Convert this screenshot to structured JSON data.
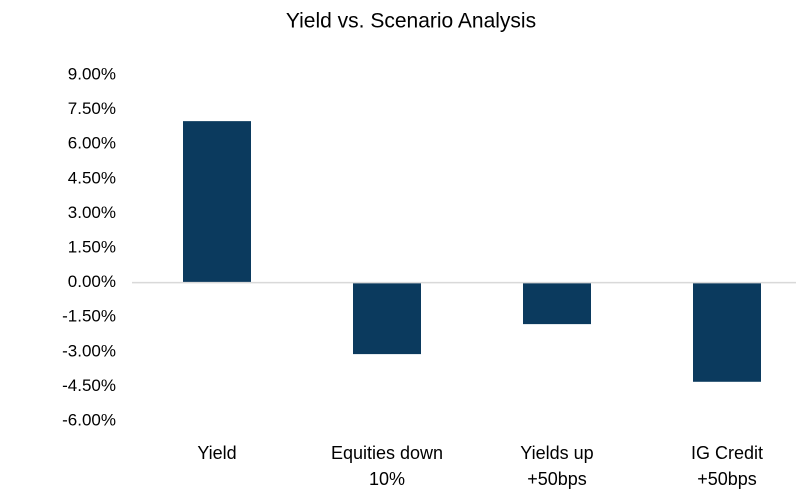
{
  "chart_data": {
    "type": "bar",
    "title": "Yield vs. Scenario Analysis",
    "categories": [
      "Yield",
      "Equities down 10%",
      "Yields up +50bps",
      "IG Credit +50bps"
    ],
    "values": [
      7.0,
      -3.1,
      -1.8,
      -4.3
    ],
    "color": "#0b3a5e",
    "ylim": [
      -6,
      9
    ],
    "yticks": [
      {
        "value": -6,
        "label": "-6.00%"
      },
      {
        "value": -4.5,
        "label": "-4.50%"
      },
      {
        "value": -3,
        "label": "-3.00%"
      },
      {
        "value": -1.5,
        "label": "-1.50%"
      },
      {
        "value": 0,
        "label": "0.00%"
      },
      {
        "value": 1.5,
        "label": "1.50%"
      },
      {
        "value": 3,
        "label": "3.00%"
      },
      {
        "value": 4.5,
        "label": "4.50%"
      },
      {
        "value": 6,
        "label": "6.00%"
      },
      {
        "value": 7.5,
        "label": "7.50%"
      },
      {
        "value": 9,
        "label": "9.00%"
      }
    ],
    "grid": false
  }
}
